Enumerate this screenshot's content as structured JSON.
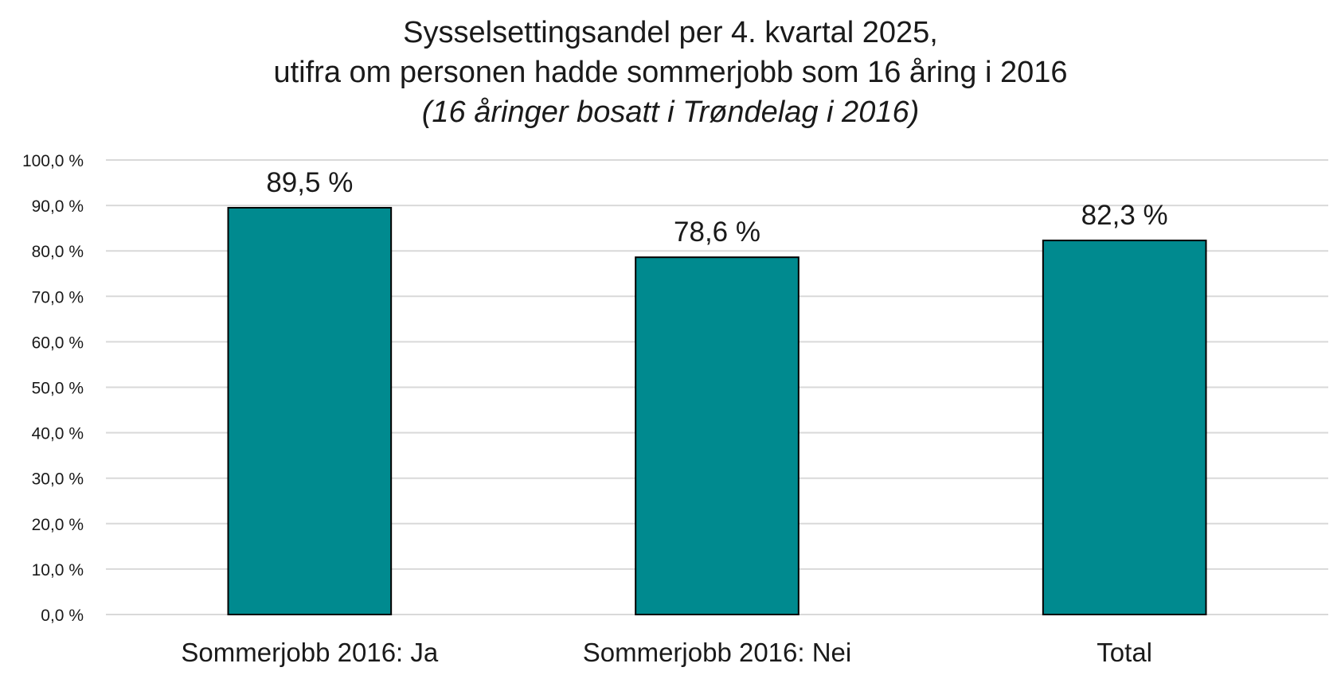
{
  "chart_data": {
    "type": "bar",
    "title": "Sysselsettingsandel per 4. kvartal 2025,",
    "title_line2": "utifra om personen hadde sommerjobb som 16 åring i 2016",
    "subtitle": "(16 åringer bosatt i Trøndelag i 2016)",
    "categories": [
      "Sommerjobb 2016: Ja",
      "Sommerjobb 2016: Nei",
      "Total"
    ],
    "values": [
      89.5,
      78.6,
      82.3
    ],
    "data_labels": [
      "89,5 %",
      "78,6 %",
      "82,3 %"
    ],
    "ylim": [
      0,
      100
    ],
    "y_ticks": [
      0,
      10,
      20,
      30,
      40,
      50,
      60,
      70,
      80,
      90,
      100
    ],
    "y_tick_labels": [
      "0,0 %",
      "10,0 %",
      "20,0 %",
      "30,0 %",
      "40,0 %",
      "50,0 %",
      "60,0 %",
      "70,0 %",
      "80,0 %",
      "90,0 %",
      "100,0 %"
    ],
    "xlabel": "",
    "ylabel": "",
    "grid": true,
    "legend": "none",
    "colors": {
      "bar": "#008a8f",
      "bar_outline": "#000000",
      "grid": "#d9d9d9",
      "text": "#1a1a1a"
    }
  }
}
